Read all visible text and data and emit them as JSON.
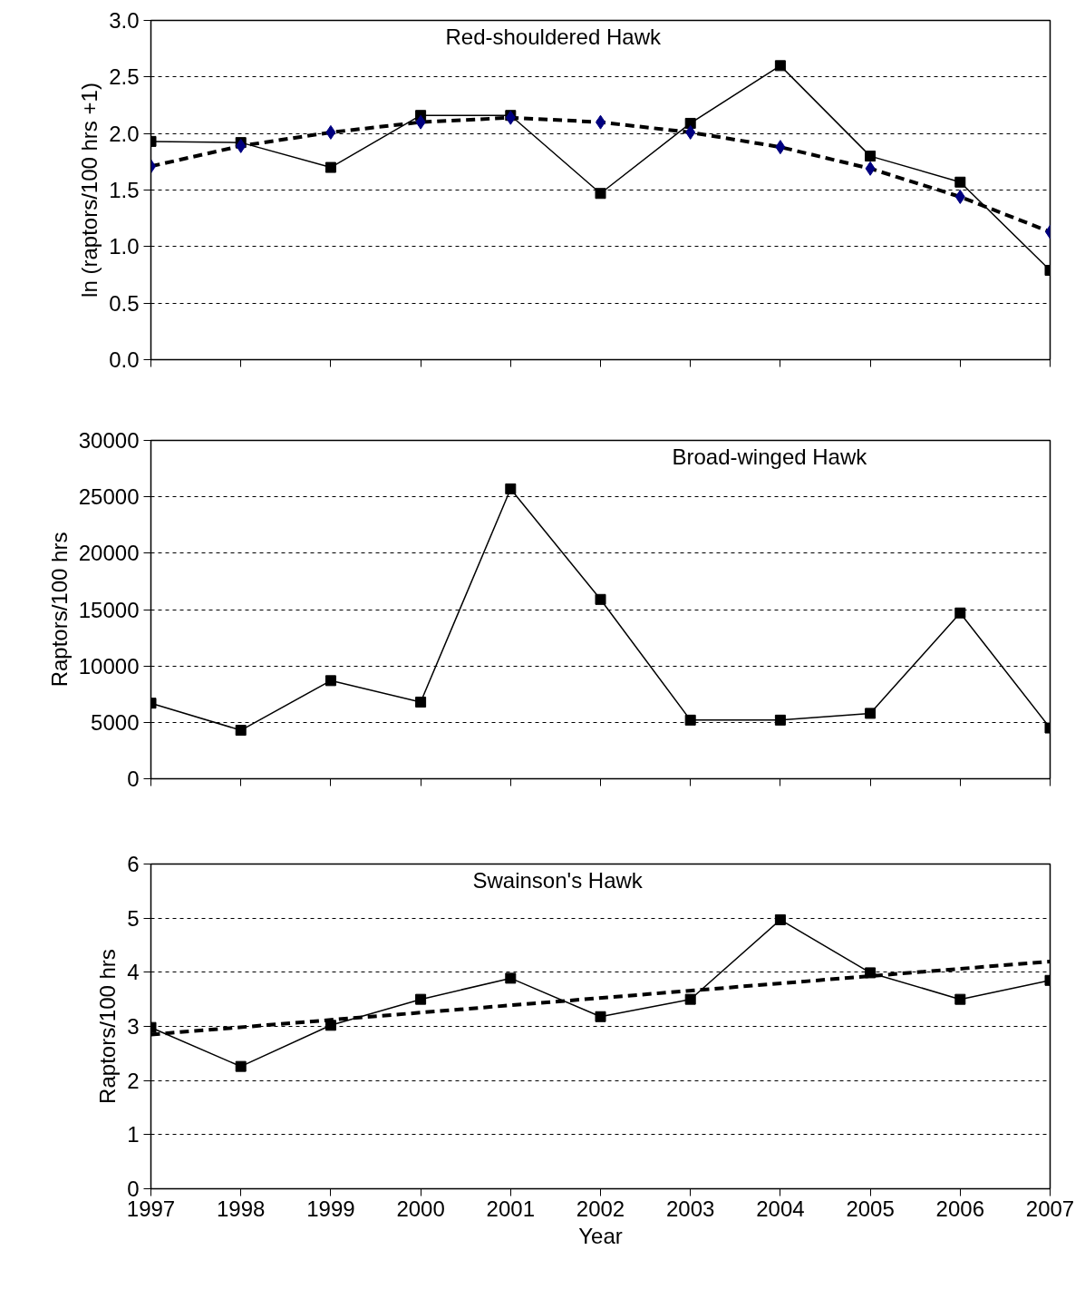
{
  "chart_data": [
    {
      "type": "line",
      "ylabel": "ln (raptors/100 hrs +1)",
      "annotations": [
        "Red-shouldered Hawk"
      ],
      "x": [
        1997,
        1998,
        1999,
        2000,
        2001,
        2002,
        2003,
        2004,
        2005,
        2006,
        2007
      ],
      "xlim": [
        1997,
        2007
      ],
      "xticks": [
        1997,
        1998,
        1999,
        2000,
        2001,
        2002,
        2003,
        2004,
        2005,
        2006,
        2007
      ],
      "ylim": [
        0,
        3
      ],
      "yticks": [
        {
          "value": 0,
          "label": "0.0"
        },
        0.5,
        {
          "value": 1,
          "label": "1.0"
        },
        1.5,
        {
          "value": 2,
          "label": "2.0"
        },
        2.5,
        {
          "value": 3,
          "label": "3.0"
        }
      ],
      "grid": "y",
      "tick_labels": "y",
      "series": [
        {
          "color": "#000000",
          "marker": "square",
          "line_style": "solid",
          "values": [
            1.93,
            1.92,
            1.7,
            2.16,
            2.16,
            1.47,
            2.09,
            2.6,
            1.8,
            1.57,
            0.79
          ]
        },
        {
          "color": "#000080",
          "marker": "diamond",
          "line_style": "dashed",
          "values": [
            1.71,
            1.89,
            2.01,
            2.1,
            2.14,
            2.1,
            2.01,
            1.88,
            1.69,
            1.44,
            1.13
          ]
        }
      ]
    },
    {
      "type": "line",
      "ylabel": "Raptors/100 hrs",
      "annotations": [
        "Broad-winged Hawk"
      ],
      "x": [
        1997,
        1998,
        1999,
        2000,
        2001,
        2002,
        2003,
        2004,
        2005,
        2006,
        2007
      ],
      "xlim": [
        1997,
        2007
      ],
      "xticks": [
        1997,
        1998,
        1999,
        2000,
        2001,
        2002,
        2003,
        2004,
        2005,
        2006,
        2007
      ],
      "ylim": [
        0,
        30000
      ],
      "yticks": [
        0,
        5000,
        10000,
        15000,
        20000,
        25000,
        30000
      ],
      "grid": "y",
      "tick_labels": "y",
      "series": [
        {
          "color": "#000000",
          "marker": "square",
          "line_style": "solid",
          "values": [
            6700,
            4300,
            8700,
            6800,
            25700,
            15900,
            5200,
            5200,
            5800,
            14700,
            4500
          ]
        }
      ]
    },
    {
      "type": "line",
      "ylabel": "Raptors/100 hrs",
      "xlabel": "Year",
      "annotations": [
        "Swainson's Hawk"
      ],
      "x": [
        1997,
        1998,
        1999,
        2000,
        2001,
        2002,
        2003,
        2004,
        2005,
        2006,
        2007
      ],
      "xlim": [
        1997,
        2007
      ],
      "xticks": [
        1997,
        1998,
        1999,
        2000,
        2001,
        2002,
        2003,
        2004,
        2005,
        2006,
        2007
      ],
      "ylim": [
        0,
        6
      ],
      "yticks": [
        0,
        1,
        2,
        3,
        4,
        5,
        6
      ],
      "grid": "y",
      "series": [
        {
          "color": "#000000",
          "marker": "square",
          "line_style": "solid",
          "values": [
            2.98,
            2.26,
            3.02,
            3.5,
            3.89,
            3.18,
            3.5,
            4.97,
            3.99,
            3.5,
            3.85
          ]
        },
        {
          "color": "#000000",
          "marker": "none",
          "line_style": "dashed",
          "x": [
            1997,
            2007
          ],
          "values": [
            2.85,
            4.2
          ]
        }
      ]
    }
  ]
}
